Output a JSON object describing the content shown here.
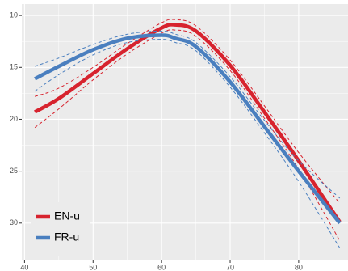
{
  "chart_data": {
    "type": "line",
    "x": [
      41.5,
      45,
      50,
      55,
      60,
      62,
      65,
      70,
      75,
      80,
      86
    ],
    "series": [
      {
        "name": "EN-u",
        "color": "#d7232e",
        "values": [
          19.3,
          18.0,
          15.6,
          13.2,
          11.2,
          10.9,
          11.5,
          14.8,
          19.3,
          24.0,
          29.9
        ],
        "ci_lower": [
          17.8,
          17.0,
          15.0,
          12.7,
          10.7,
          10.4,
          11.0,
          14.3,
          18.7,
          23.2,
          28.1
        ],
        "ci_upper": [
          20.8,
          19.0,
          16.2,
          13.7,
          11.7,
          11.4,
          12.0,
          15.3,
          19.9,
          24.8,
          31.7
        ]
      },
      {
        "name": "FR-u",
        "color": "#4a7fbf",
        "values": [
          16.1,
          14.9,
          13.3,
          12.2,
          11.9,
          12.2,
          13.0,
          16.4,
          20.7,
          25.0,
          30.0
        ],
        "ci_lower": [
          14.9,
          14.1,
          12.8,
          11.8,
          11.5,
          11.8,
          12.6,
          15.9,
          20.1,
          24.0,
          27.6
        ],
        "ci_upper": [
          17.3,
          15.7,
          13.8,
          12.6,
          12.3,
          12.6,
          13.4,
          16.9,
          21.3,
          26.0,
          32.4
        ]
      }
    ],
    "xlim": [
      39.6,
      87.2
    ],
    "xticks": [
      40,
      50,
      60,
      70,
      80
    ],
    "ylim": [
      33.6,
      8.9
    ],
    "yticks": [
      10,
      15,
      20,
      25,
      30
    ],
    "grid": true,
    "legend_position": "bottom-left"
  }
}
